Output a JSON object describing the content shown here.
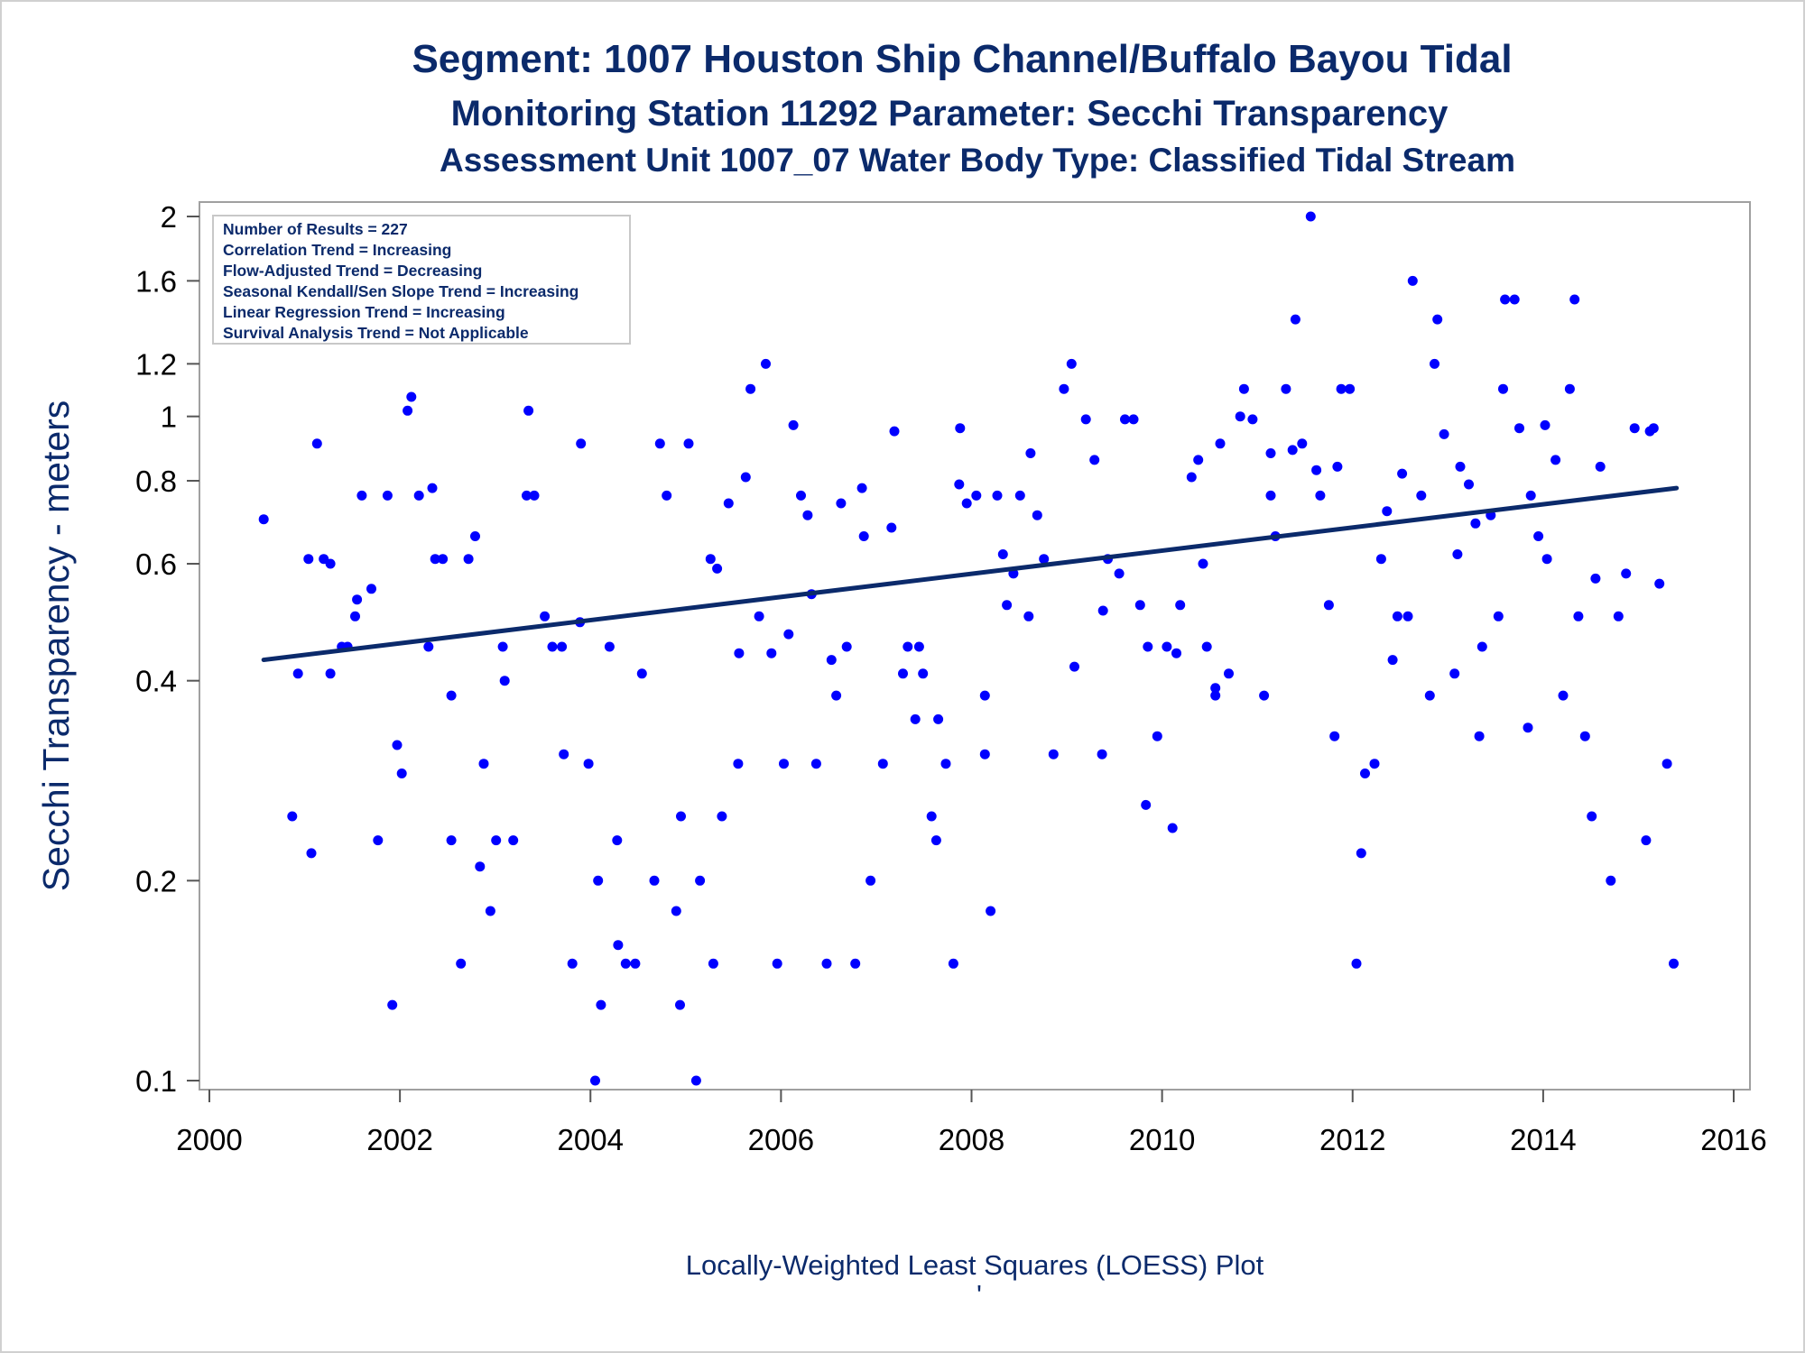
{
  "titles": {
    "line1": "Segment: 1007  Houston Ship Channel/Buffalo Bayou Tidal",
    "line2": "Monitoring Station 11292 Parameter: Secchi Transparency",
    "line3": "Assessment Unit 1007_07   Water Body Type: Classified Tidal Stream"
  },
  "footer": "Locally-Weighted Least Squares (LOESS) Plot",
  "footer_mark": "'",
  "colors": {
    "title": "#0b2a6b",
    "points": "#0000ff",
    "trend_line": "#0b2a6b",
    "frame": "#a0a0a0"
  },
  "chart_data": {
    "type": "scatter",
    "ylabel": "Secchi Transparency - meters",
    "xlabel": "",
    "y_scale": "log",
    "xlim": [
      2000,
      2016
    ],
    "ylim": [
      0.1,
      2
    ],
    "x_ticks": [
      2000,
      2002,
      2004,
      2006,
      2008,
      2010,
      2012,
      2014,
      2016
    ],
    "x_tick_labels": [
      "2000",
      "2002",
      "2004",
      "2006",
      "2008",
      "2010",
      "2012",
      "2014",
      "2016"
    ],
    "y_ticks": [
      0.1,
      0.2,
      0.4,
      0.6,
      0.8,
      1,
      1.2,
      1.6,
      2
    ],
    "y_tick_labels": [
      "0.1",
      "0.2",
      "0.4",
      "0.6",
      "0.8",
      "1",
      "1.2",
      "1.6",
      "2"
    ],
    "grid": false,
    "legend_placement": "top-left",
    "stats_box": [
      "Number of Results = 227",
      "Correlation Trend = Increasing",
      "Flow-Adjusted Trend = Decreasing",
      "Seasonal Kendall/Sen Slope Trend = Increasing",
      "Linear Regression Trend = Increasing",
      "Survival Analysis Trend = Not Applicable"
    ],
    "trend": {
      "x": [
        2000.57,
        2015.4
      ],
      "y": [
        0.43,
        0.78
      ]
    },
    "points": [
      [
        2000.57,
        0.7
      ],
      [
        2000.87,
        0.25
      ],
      [
        2000.93,
        0.41
      ],
      [
        2001.04,
        0.61
      ],
      [
        2001.07,
        0.22
      ],
      [
        2001.13,
        0.91
      ],
      [
        2001.2,
        0.61
      ],
      [
        2001.27,
        0.6
      ],
      [
        2001.27,
        0.41
      ],
      [
        2001.39,
        0.45
      ],
      [
        2001.45,
        0.45
      ],
      [
        2001.53,
        0.5
      ],
      [
        2001.55,
        0.53
      ],
      [
        2001.6,
        0.76
      ],
      [
        2001.7,
        0.55
      ],
      [
        2001.77,
        0.23
      ],
      [
        2001.87,
        0.76
      ],
      [
        2001.92,
        0.13
      ],
      [
        2001.97,
        0.32
      ],
      [
        2002.02,
        0.29
      ],
      [
        2002.08,
        1.02
      ],
      [
        2002.12,
        1.07
      ],
      [
        2002.2,
        0.76
      ],
      [
        2002.3,
        0.45
      ],
      [
        2002.34,
        0.78
      ],
      [
        2002.37,
        0.61
      ],
      [
        2002.45,
        0.61
      ],
      [
        2002.54,
        0.38
      ],
      [
        2002.54,
        0.23
      ],
      [
        2002.64,
        0.15
      ],
      [
        2002.72,
        0.61
      ],
      [
        2002.79,
        0.66
      ],
      [
        2002.84,
        0.21
      ],
      [
        2002.88,
        0.3
      ],
      [
        2002.95,
        0.18
      ],
      [
        2003.01,
        0.23
      ],
      [
        2003.08,
        0.45
      ],
      [
        2003.1,
        0.4
      ],
      [
        2003.19,
        0.23
      ],
      [
        2003.33,
        0.76
      ],
      [
        2003.35,
        1.02
      ],
      [
        2003.41,
        0.76
      ],
      [
        2003.52,
        0.5
      ],
      [
        2003.6,
        0.45
      ],
      [
        2003.7,
        0.45
      ],
      [
        2003.72,
        0.31
      ],
      [
        2003.81,
        0.15
      ],
      [
        2003.89,
        0.49
      ],
      [
        2003.9,
        0.91
      ],
      [
        2003.98,
        0.3
      ],
      [
        2004.05,
        0.1
      ],
      [
        2004.08,
        0.2
      ],
      [
        2004.11,
        0.13
      ],
      [
        2004.2,
        0.45
      ],
      [
        2004.28,
        0.23
      ],
      [
        2004.29,
        0.16
      ],
      [
        2004.37,
        0.15
      ],
      [
        2004.47,
        0.15
      ],
      [
        2004.54,
        0.41
      ],
      [
        2004.67,
        0.2
      ],
      [
        2004.73,
        0.91
      ],
      [
        2004.8,
        0.76
      ],
      [
        2004.9,
        0.18
      ],
      [
        2004.94,
        0.13
      ],
      [
        2004.95,
        0.25
      ],
      [
        2005.03,
        0.91
      ],
      [
        2005.11,
        0.1
      ],
      [
        2005.15,
        0.2
      ],
      [
        2005.26,
        0.61
      ],
      [
        2005.29,
        0.15
      ],
      [
        2005.33,
        0.59
      ],
      [
        2005.38,
        0.25
      ],
      [
        2005.45,
        0.74
      ],
      [
        2005.55,
        0.3
      ],
      [
        2005.56,
        0.44
      ],
      [
        2005.63,
        0.81
      ],
      [
        2005.68,
        1.1
      ],
      [
        2005.77,
        0.5
      ],
      [
        2005.84,
        1.2
      ],
      [
        2005.9,
        0.44
      ],
      [
        2005.96,
        0.15
      ],
      [
        2006.03,
        0.3
      ],
      [
        2006.08,
        0.47
      ],
      [
        2006.13,
        0.97
      ],
      [
        2006.21,
        0.76
      ],
      [
        2006.28,
        0.71
      ],
      [
        2006.32,
        0.54
      ],
      [
        2006.37,
        0.3
      ],
      [
        2006.48,
        0.15
      ],
      [
        2006.53,
        0.43
      ],
      [
        2006.58,
        0.38
      ],
      [
        2006.63,
        0.74
      ],
      [
        2006.69,
        0.45
      ],
      [
        2006.78,
        0.15
      ],
      [
        2006.85,
        0.78
      ],
      [
        2006.87,
        0.66
      ],
      [
        2006.94,
        0.2
      ],
      [
        2007.07,
        0.3
      ],
      [
        2007.16,
        0.68
      ],
      [
        2007.19,
        0.95
      ],
      [
        2007.28,
        0.41
      ],
      [
        2007.33,
        0.45
      ],
      [
        2007.41,
        0.35
      ],
      [
        2007.45,
        0.45
      ],
      [
        2007.49,
        0.41
      ],
      [
        2007.58,
        0.25
      ],
      [
        2007.63,
        0.23
      ],
      [
        2007.65,
        0.35
      ],
      [
        2007.73,
        0.3
      ],
      [
        2007.81,
        0.15
      ],
      [
        2007.87,
        0.79
      ],
      [
        2007.88,
        0.96
      ],
      [
        2007.95,
        0.74
      ],
      [
        2008.05,
        0.76
      ],
      [
        2008.14,
        0.38
      ],
      [
        2008.14,
        0.31
      ],
      [
        2008.2,
        0.18
      ],
      [
        2008.27,
        0.76
      ],
      [
        2008.33,
        0.62
      ],
      [
        2008.37,
        0.52
      ],
      [
        2008.44,
        0.58
      ],
      [
        2008.51,
        0.76
      ],
      [
        2008.6,
        0.5
      ],
      [
        2008.62,
        0.88
      ],
      [
        2008.69,
        0.71
      ],
      [
        2008.76,
        0.61
      ],
      [
        2008.86,
        0.31
      ],
      [
        2008.97,
        1.1
      ],
      [
        2009.05,
        1.2
      ],
      [
        2009.08,
        0.42
      ],
      [
        2009.2,
        0.99
      ],
      [
        2009.29,
        0.86
      ],
      [
        2009.37,
        0.31
      ],
      [
        2009.38,
        0.51
      ],
      [
        2009.43,
        0.61
      ],
      [
        2009.55,
        0.58
      ],
      [
        2009.61,
        0.99
      ],
      [
        2009.7,
        0.99
      ],
      [
        2009.77,
        0.52
      ],
      [
        2009.83,
        0.26
      ],
      [
        2009.85,
        0.45
      ],
      [
        2009.95,
        0.33
      ],
      [
        2010.05,
        0.45
      ],
      [
        2010.11,
        0.24
      ],
      [
        2010.15,
        0.44
      ],
      [
        2010.19,
        0.52
      ],
      [
        2010.31,
        0.81
      ],
      [
        2010.38,
        0.86
      ],
      [
        2010.43,
        0.6
      ],
      [
        2010.47,
        0.45
      ],
      [
        2010.56,
        0.38
      ],
      [
        2010.56,
        0.39
      ],
      [
        2010.61,
        0.91
      ],
      [
        2010.7,
        0.41
      ],
      [
        2010.82,
        1
      ],
      [
        2010.86,
        1.1
      ],
      [
        2010.95,
        0.99
      ],
      [
        2011.07,
        0.38
      ],
      [
        2011.14,
        0.88
      ],
      [
        2011.14,
        0.76
      ],
      [
        2011.19,
        0.66
      ],
      [
        2011.3,
        1.1
      ],
      [
        2011.37,
        0.89
      ],
      [
        2011.4,
        1.4
      ],
      [
        2011.47,
        0.91
      ],
      [
        2011.56,
        2
      ],
      [
        2011.62,
        0.83
      ],
      [
        2011.66,
        0.76
      ],
      [
        2011.75,
        0.52
      ],
      [
        2011.81,
        0.33
      ],
      [
        2011.84,
        0.84
      ],
      [
        2011.88,
        1.1
      ],
      [
        2011.97,
        1.1
      ],
      [
        2012.04,
        0.15
      ],
      [
        2012.09,
        0.22
      ],
      [
        2012.13,
        0.29
      ],
      [
        2012.23,
        0.3
      ],
      [
        2012.3,
        0.61
      ],
      [
        2012.36,
        0.72
      ],
      [
        2012.42,
        0.43
      ],
      [
        2012.47,
        0.5
      ],
      [
        2012.52,
        0.82
      ],
      [
        2012.58,
        0.5
      ],
      [
        2012.63,
        1.6
      ],
      [
        2012.72,
        0.76
      ],
      [
        2012.81,
        0.38
      ],
      [
        2012.86,
        1.2
      ],
      [
        2012.89,
        1.4
      ],
      [
        2012.96,
        0.94
      ],
      [
        2013.07,
        0.41
      ],
      [
        2013.1,
        0.62
      ],
      [
        2013.13,
        0.84
      ],
      [
        2013.22,
        0.79
      ],
      [
        2013.29,
        0.69
      ],
      [
        2013.33,
        0.33
      ],
      [
        2013.36,
        0.45
      ],
      [
        2013.45,
        0.71
      ],
      [
        2013.53,
        0.5
      ],
      [
        2013.58,
        1.1
      ],
      [
        2013.6,
        1.5
      ],
      [
        2013.7,
        1.5
      ],
      [
        2013.75,
        0.96
      ],
      [
        2013.84,
        0.34
      ],
      [
        2013.87,
        0.76
      ],
      [
        2013.95,
        0.66
      ],
      [
        2014.02,
        0.97
      ],
      [
        2014.04,
        0.61
      ],
      [
        2014.13,
        0.86
      ],
      [
        2014.21,
        0.38
      ],
      [
        2014.28,
        1.1
      ],
      [
        2014.33,
        1.5
      ],
      [
        2014.37,
        0.5
      ],
      [
        2014.44,
        0.33
      ],
      [
        2014.51,
        0.25
      ],
      [
        2014.55,
        0.57
      ],
      [
        2014.6,
        0.84
      ],
      [
        2014.71,
        0.2
      ],
      [
        2014.79,
        0.5
      ],
      [
        2014.87,
        0.58
      ],
      [
        2014.96,
        0.96
      ],
      [
        2015.08,
        0.23
      ],
      [
        2015.12,
        0.95
      ],
      [
        2015.16,
        0.96
      ],
      [
        2015.22,
        0.56
      ],
      [
        2015.3,
        0.3
      ],
      [
        2015.37,
        0.15
      ]
    ]
  }
}
